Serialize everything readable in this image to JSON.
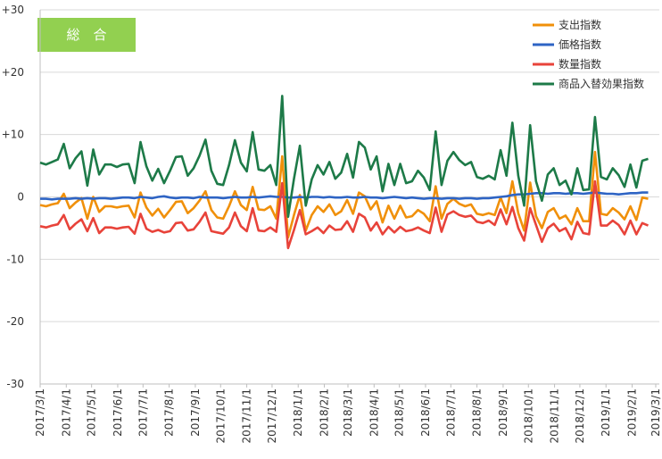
{
  "chart_data": {
    "type": "line",
    "badge": "総　合",
    "x": [
      "2017/3/1",
      "2017/3/8",
      "2017/3/15",
      "2017/3/22",
      "2017/3/29",
      "2017/4/5",
      "2017/4/12",
      "2017/4/19",
      "2017/4/26",
      "2017/5/3",
      "2017/5/10",
      "2017/5/17",
      "2017/5/24",
      "2017/5/31",
      "2017/6/7",
      "2017/6/14",
      "2017/6/21",
      "2017/6/28",
      "2017/7/5",
      "2017/7/12",
      "2017/7/19",
      "2017/7/26",
      "2017/8/2",
      "2017/8/9",
      "2017/8/16",
      "2017/8/23",
      "2017/8/30",
      "2017/9/6",
      "2017/9/13",
      "2017/9/20",
      "2017/9/27",
      "2017/10/4",
      "2017/10/11",
      "2017/10/18",
      "2017/10/25",
      "2017/11/1",
      "2017/11/8",
      "2017/11/15",
      "2017/11/22",
      "2017/11/29",
      "2017/12/6",
      "2017/12/13",
      "2017/12/20",
      "2017/12/27",
      "2018/1/3",
      "2018/1/10",
      "2018/1/17",
      "2018/1/24",
      "2018/1/31",
      "2018/2/7",
      "2018/2/14",
      "2018/2/21",
      "2018/2/28",
      "2018/3/7",
      "2018/3/14",
      "2018/3/21",
      "2018/3/28",
      "2018/4/4",
      "2018/4/11",
      "2018/4/18",
      "2018/4/25",
      "2018/5/2",
      "2018/5/9",
      "2018/5/16",
      "2018/5/23",
      "2018/5/30",
      "2018/6/6",
      "2018/6/13",
      "2018/6/20",
      "2018/6/27",
      "2018/7/4",
      "2018/7/11",
      "2018/7/18",
      "2018/7/25",
      "2018/8/1",
      "2018/8/8",
      "2018/8/15",
      "2018/8/22",
      "2018/8/29",
      "2018/9/5",
      "2018/9/12",
      "2018/9/19",
      "2018/9/26",
      "2018/10/3",
      "2018/10/10",
      "2018/10/17",
      "2018/10/24",
      "2018/10/31",
      "2018/11/7",
      "2018/11/14",
      "2018/11/21",
      "2018/11/28",
      "2018/12/5",
      "2018/12/12",
      "2018/12/19",
      "2018/12/26",
      "2019/1/2",
      "2019/1/9",
      "2019/1/16",
      "2019/1/23",
      "2019/1/30",
      "2019/2/6",
      "2019/2/13",
      "2019/2/20"
    ],
    "series": [
      {
        "name": "支出指数",
        "color": "#f0900a",
        "values": [
          -1.3,
          -1.5,
          -1.2,
          -1.0,
          0.5,
          -1.8,
          -0.9,
          -0.2,
          -3.5,
          0,
          -2.4,
          -1.5,
          -1.5,
          -1.7,
          -1.5,
          -1.4,
          -3.3,
          0.7,
          -1.7,
          -3.0,
          -1.9,
          -3.3,
          -2.1,
          -0.8,
          -0.7,
          -2.6,
          -1.8,
          -0.6,
          0.9,
          -2.1,
          -3.3,
          -3.5,
          -1.5,
          0.9,
          -1.3,
          -2.1,
          1.6,
          -2.0,
          -2.1,
          -1.5,
          -3.5,
          6.5,
          -6.5,
          -2.9,
          0.3,
          -5.4,
          -2.9,
          -1.5,
          -2.4,
          -1.2,
          -2.9,
          -2.3,
          -0.5,
          -2.7,
          0.7,
          0.1,
          -2.0,
          -0.7,
          -4.1,
          -1.4,
          -3.5,
          -1.4,
          -3.3,
          -3.1,
          -2.1,
          -2.7,
          -3.9,
          1.7,
          -3.5,
          -1.1,
          -0.3,
          -1.1,
          -1.5,
          -1.2,
          -2.7,
          -2.9,
          -2.6,
          -2.9,
          -0.1,
          -2.6,
          2.5,
          -2.6,
          -5.4,
          2.3,
          -3.1,
          -5.0,
          -2.4,
          -1.8,
          -3.5,
          -3.0,
          -4.4,
          -1.8,
          -3.9,
          -3.9,
          7.2,
          -2.7,
          -2.9,
          -1.8,
          -2.5,
          -3.6,
          -1.5,
          -3.7,
          -0.1,
          -0.3
        ]
      },
      {
        "name": "価格指数",
        "color": "#2e64c4",
        "values": [
          -0.3,
          -0.3,
          -0.4,
          -0.3,
          -0.3,
          -0.3,
          -0.2,
          -0.3,
          -0.2,
          -0.3,
          -0.2,
          -0.2,
          -0.3,
          -0.2,
          -0.1,
          -0.1,
          -0.2,
          0,
          -0.1,
          -0.2,
          0,
          0.1,
          -0.1,
          -0.2,
          -0.1,
          -0.1,
          -0.2,
          0,
          -0.1,
          -0.1,
          -0.1,
          -0.2,
          -0.1,
          0,
          -0.1,
          -0.1,
          0,
          -0.1,
          0,
          0.1,
          0,
          0,
          -0.1,
          -0.1,
          0,
          -0.1,
          0,
          0,
          -0.1,
          0,
          -0.1,
          -0.1,
          0,
          -0.1,
          -0.1,
          0,
          -0.1,
          -0.1,
          -0.2,
          -0.1,
          0,
          -0.1,
          -0.2,
          -0.1,
          -0.2,
          -0.3,
          -0.2,
          -0.2,
          -0.3,
          -0.2,
          -0.2,
          -0.3,
          -0.2,
          -0.2,
          -0.3,
          -0.2,
          -0.2,
          -0.1,
          0,
          0.1,
          0.3,
          0.4,
          0.4,
          0.5,
          0.6,
          0.6,
          0.5,
          0.6,
          0.6,
          0.5,
          0.6,
          0.6,
          0.5,
          0.6,
          0.7,
          0.6,
          0.5,
          0.5,
          0.4,
          0.5,
          0.6,
          0.6,
          0.7,
          0.7
        ]
      },
      {
        "name": "数量指数",
        "color": "#e8433a",
        "values": [
          -4.7,
          -4.9,
          -4.6,
          -4.4,
          -2.9,
          -5.2,
          -4.3,
          -3.6,
          -5.5,
          -3.4,
          -5.8,
          -4.9,
          -4.9,
          -5.1,
          -4.9,
          -4.8,
          -5.9,
          -2.7,
          -5.1,
          -5.6,
          -5.3,
          -5.7,
          -5.5,
          -4.2,
          -4.1,
          -5.4,
          -5.2,
          -4.0,
          -2.5,
          -5.5,
          -5.7,
          -5.9,
          -4.9,
          -2.5,
          -4.7,
          -5.5,
          -1.8,
          -5.4,
          -5.5,
          -4.9,
          -5.6,
          2.2,
          -8.2,
          -5.3,
          -2.1,
          -6.0,
          -5.5,
          -4.9,
          -5.8,
          -4.6,
          -5.3,
          -5.2,
          -3.9,
          -5.6,
          -2.7,
          -3.3,
          -5.4,
          -4.1,
          -6.0,
          -4.8,
          -5.7,
          -4.8,
          -5.5,
          -5.3,
          -4.9,
          -5.4,
          -5.8,
          -1.7,
          -5.6,
          -2.8,
          -2.3,
          -2.9,
          -3.2,
          -3.0,
          -4.0,
          -4.2,
          -3.8,
          -4.5,
          -2.0,
          -4.4,
          -1.6,
          -5.0,
          -7.0,
          -1.8,
          -4.5,
          -7.2,
          -5.0,
          -4.3,
          -5.5,
          -5.0,
          -6.8,
          -4.0,
          -5.8,
          -6.0,
          2.5,
          -4.6,
          -4.6,
          -3.8,
          -4.5,
          -6.0,
          -3.8,
          -6.0,
          -4.2,
          -4.6
        ]
      },
      {
        "name": "商品入替効果指数",
        "color": "#1d7a48",
        "values": [
          5.5,
          5.2,
          5.6,
          6,
          8.5,
          4.6,
          6.2,
          7.3,
          1.8,
          7.6,
          3.6,
          5.2,
          5.2,
          4.8,
          5.2,
          5.3,
          2.2,
          8.8,
          4.9,
          2.6,
          4.5,
          2.2,
          4.2,
          6.4,
          6.5,
          3.4,
          4.6,
          6.6,
          9.2,
          4.2,
          2.1,
          1.9,
          5.1,
          9.1,
          5.5,
          4.1,
          10.4,
          4.4,
          4.2,
          5.1,
          1.9,
          16.2,
          -3.2,
          2.9,
          8.2,
          -1.4,
          2.8,
          5.1,
          3.6,
          5.6,
          2.9,
          3.9,
          6.9,
          3.1,
          8.8,
          7.9,
          4.4,
          6.5,
          0.9,
          5.3,
          1.9,
          5.3,
          2.2,
          2.5,
          4.2,
          3.1,
          1.1,
          10.5,
          1.9,
          5.8,
          7.2,
          5.9,
          5.1,
          5.6,
          3.2,
          2.9,
          3.4,
          2.8,
          7.5,
          3.4,
          11.9,
          3.4,
          -1.4,
          11.5,
          2.5,
          -0.6,
          3.6,
          4.6,
          1.9,
          2.6,
          0.4,
          4.6,
          1.1,
          1.2,
          12.8,
          3.2,
          2.8,
          4.6,
          3.5,
          1.6,
          5.2,
          1.5,
          5.8,
          6.1
        ]
      }
    ],
    "xlim": [
      "2017/3/1",
      "2019/3/1"
    ],
    "xticks": [
      "2017/3/1",
      "2017/4/1",
      "2017/5/1",
      "2017/6/1",
      "2017/7/1",
      "2017/8/1",
      "2017/9/1",
      "2017/10/1",
      "2017/11/1",
      "2017/12/1",
      "2018/1/1",
      "2018/2/1",
      "2018/3/1",
      "2018/4/1",
      "2018/5/1",
      "2018/6/1",
      "2018/7/1",
      "2018/8/1",
      "2018/9/1",
      "2018/10/1",
      "2018/11/1",
      "2018/12/1",
      "2019/1/1",
      "2019/2/1",
      "2019/3/1"
    ],
    "ylim": [
      -30,
      30
    ],
    "yticks": [
      {
        "value": 30,
        "label": "+30"
      },
      {
        "value": 20,
        "label": "+20"
      },
      {
        "value": 10,
        "label": "+10"
      },
      0,
      -10,
      -20,
      -30
    ],
    "grid": true
  }
}
